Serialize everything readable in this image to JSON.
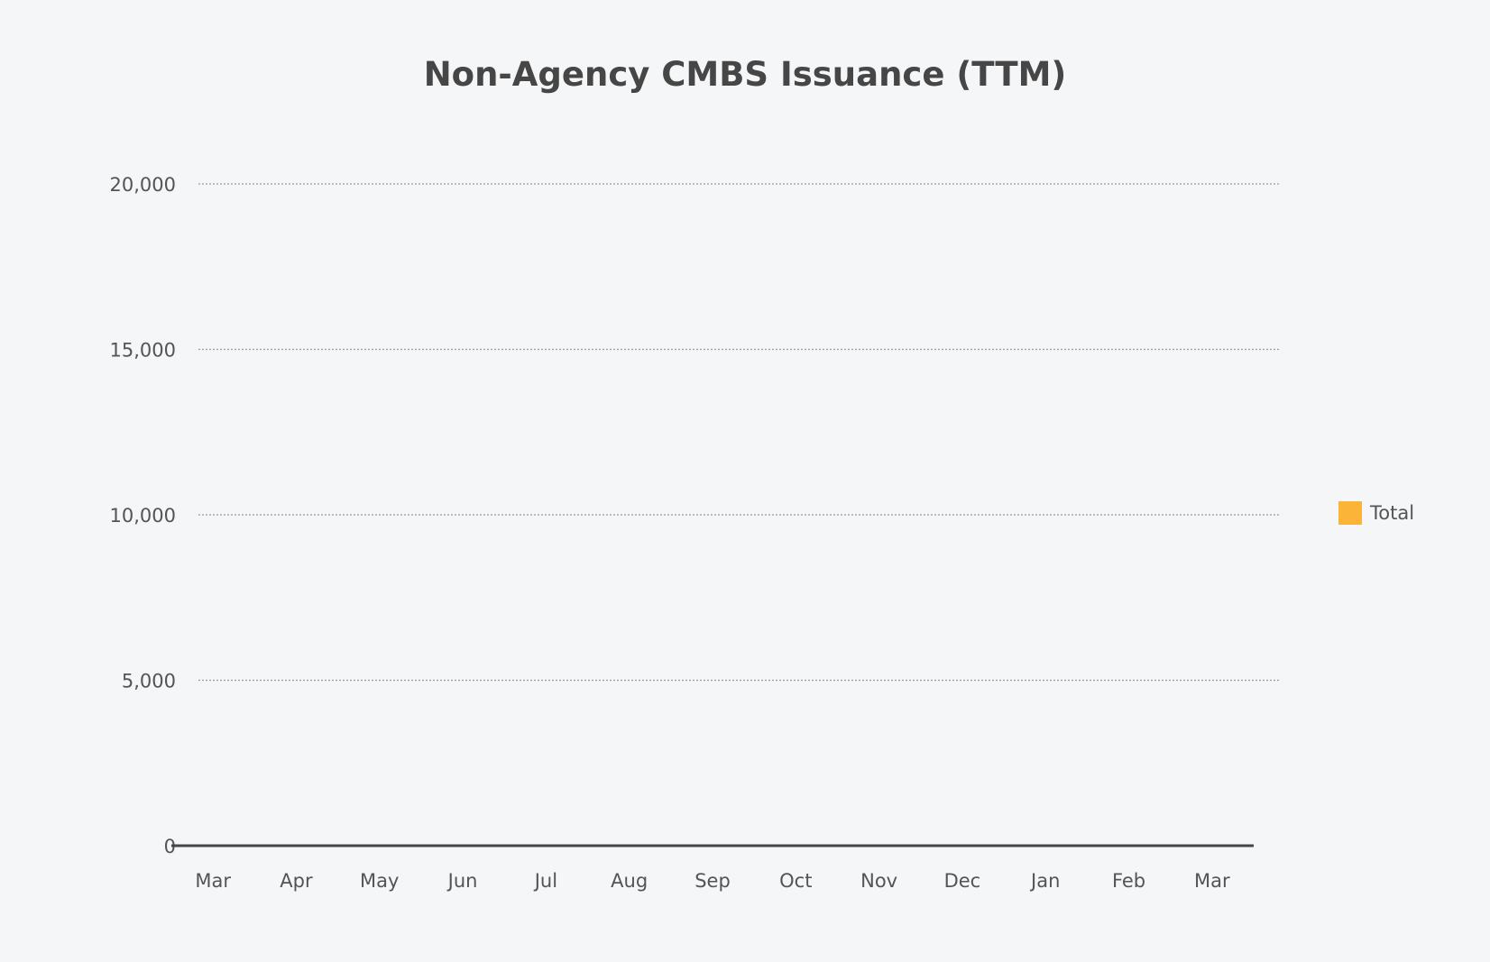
{
  "chart_data": {
    "type": "bar",
    "title": "Non-Agency CMBS Issuance (TTM)",
    "xlabel": "",
    "ylabel": "",
    "categories": [
      "Mar",
      "Apr",
      "May",
      "Jun",
      "Jul",
      "Aug",
      "Sep",
      "Oct",
      "Nov",
      "Dec",
      "Jan",
      "Feb",
      "Mar"
    ],
    "series": [
      {
        "name": "Total",
        "color": "#fbb438",
        "values": [
          0,
          0,
          0,
          0,
          0,
          0,
          0,
          0,
          0,
          0,
          0,
          0,
          0
        ]
      }
    ],
    "ylim": [
      0,
      20000
    ],
    "yticks": [
      0,
      5000,
      10000,
      15000,
      20000
    ],
    "ytick_labels": [
      "0",
      "5,000",
      "10,000",
      "15,000",
      "20,000"
    ],
    "grid": true,
    "legend": {
      "placement": "right",
      "entries": [
        "Total"
      ]
    }
  }
}
